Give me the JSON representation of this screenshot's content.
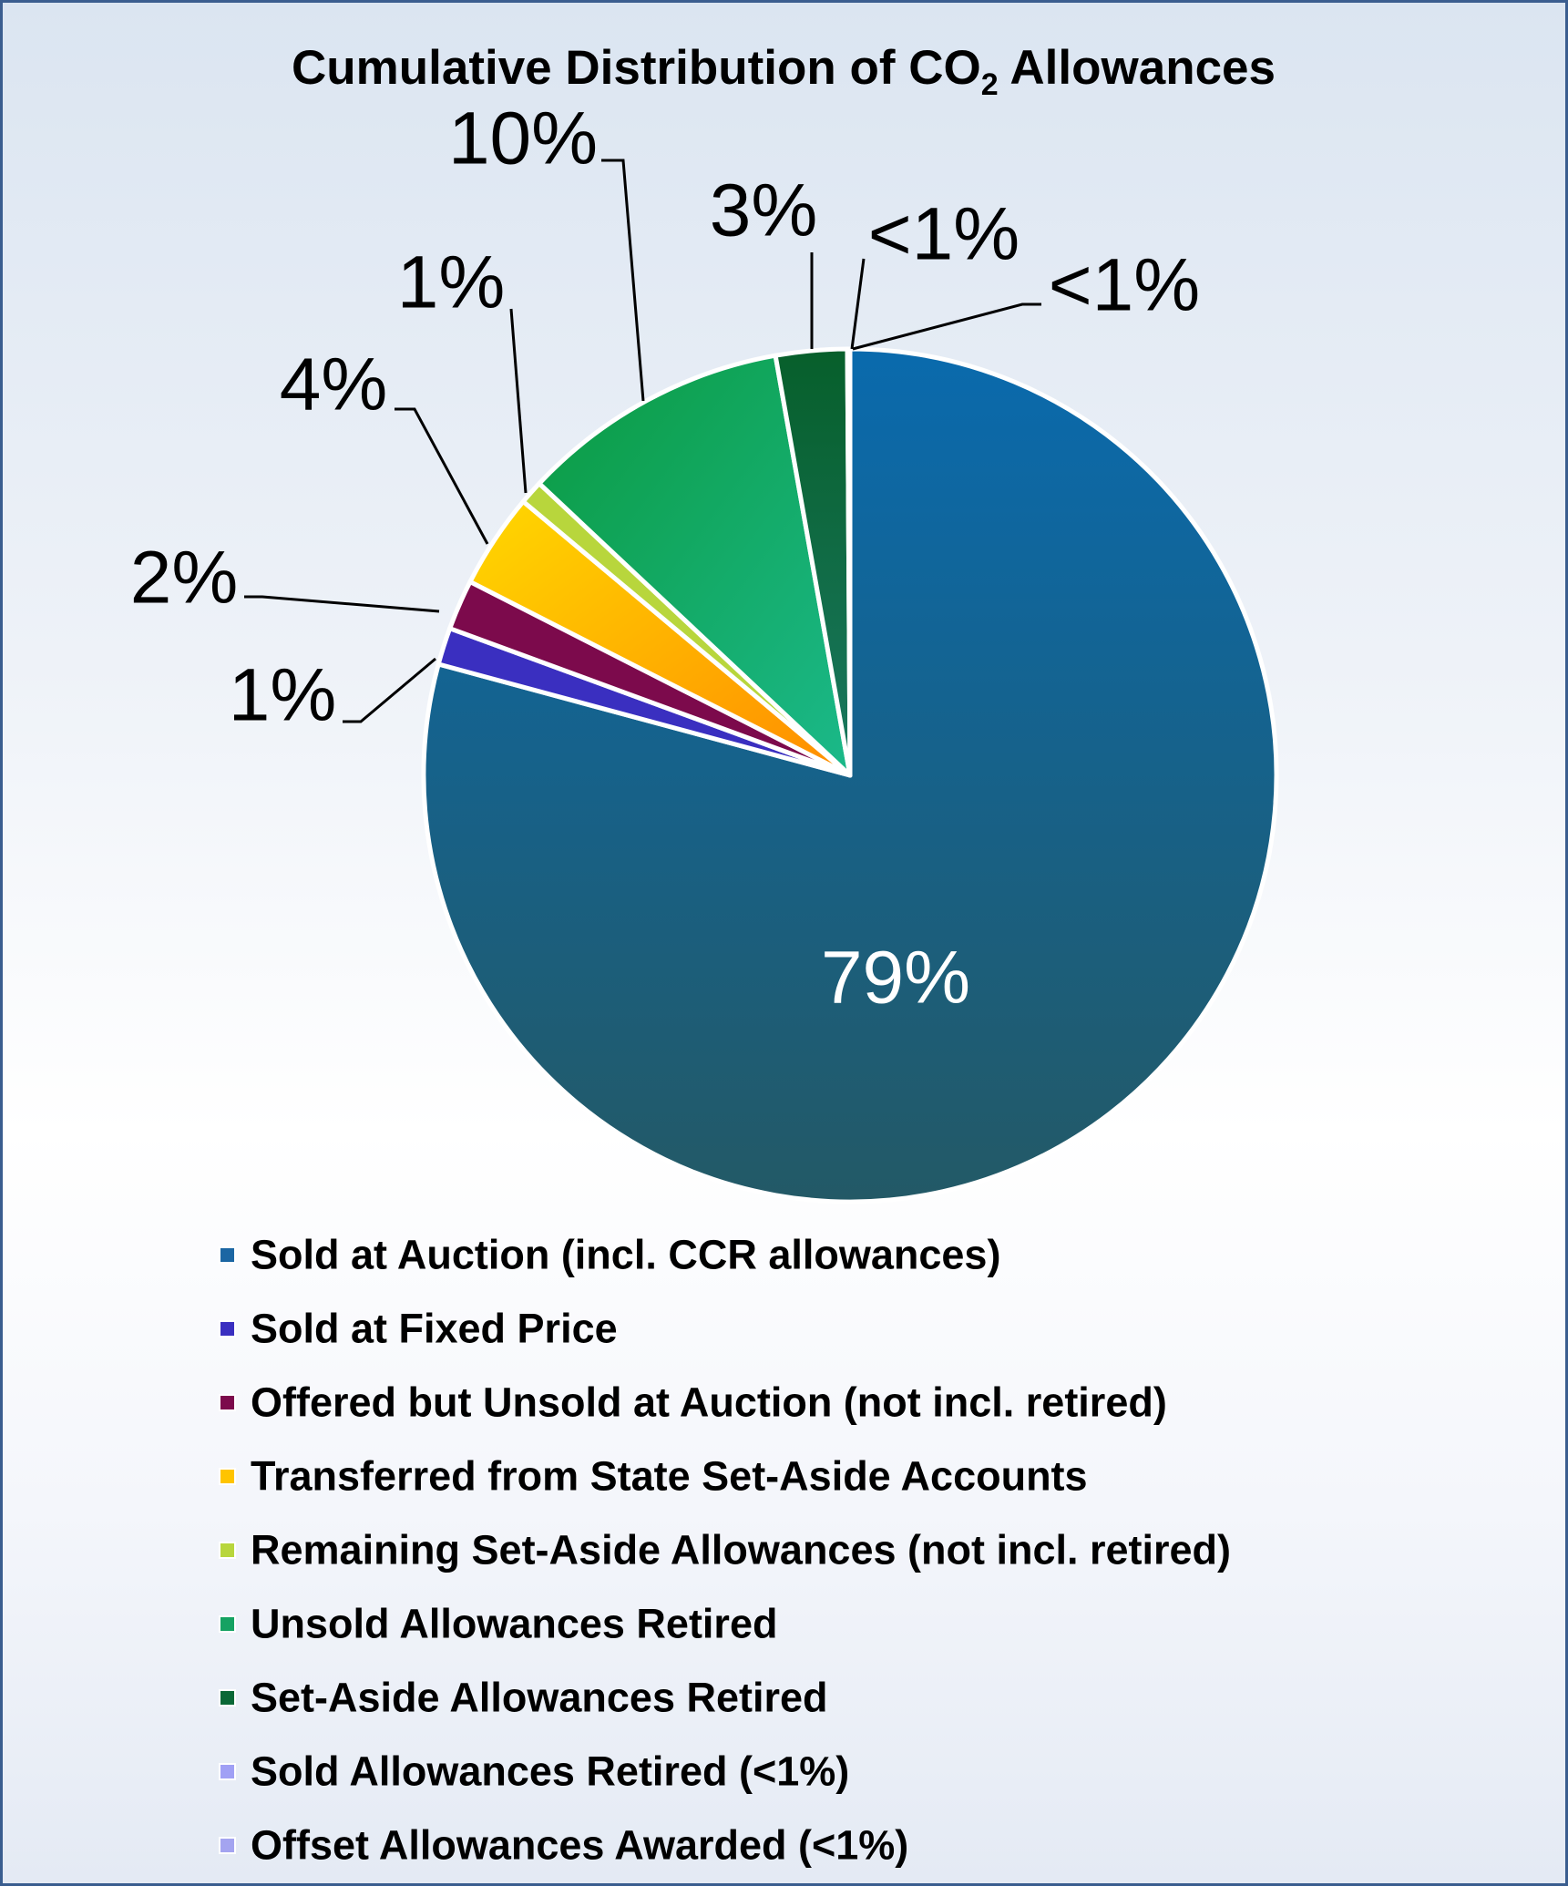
{
  "chart_data": {
    "type": "pie",
    "title": "Cumulative Distribution of CO",
    "title_subscript": "2",
    "title_suffix": " Allowances",
    "legend_position": "bottom",
    "slices": [
      {
        "name": "Sold at Auction (incl. CCR allowances)",
        "value": 79.2,
        "label": "79%",
        "color": "#1b66a3"
      },
      {
        "name": "Sold at Fixed Price",
        "value": 1.4,
        "label": "1%",
        "color": "#3a2fc0"
      },
      {
        "name": "Offered but Unsold at Auction (not incl. retired)",
        "value": 1.9,
        "label": "2%",
        "color": "#7c0a4c"
      },
      {
        "name": "Transferred from State Set-Aside Accounts",
        "value": 3.6,
        "label": "4%",
        "color": "#ffc400"
      },
      {
        "name": "Remaining Set-Aside Allowances (not incl. retired)",
        "value": 0.9,
        "label": "1%",
        "color": "#b8d63c"
      },
      {
        "name": "Unsold Allowances Retired",
        "value": 10.2,
        "label": "10%",
        "color": "#15a262"
      },
      {
        "name": "Set-Aside Allowances Retired",
        "value": 2.7,
        "label": "3%",
        "color": "#0a6836"
      },
      {
        "name": "Sold Allowances Retired (<1%)",
        "value": 0.05,
        "label": "<1%",
        "color": "#a0a0f5"
      },
      {
        "name": "Offset Allowances Awarded (<1%)",
        "value": 0.05,
        "label": "<1%",
        "color": "#a4a4f0"
      }
    ]
  }
}
